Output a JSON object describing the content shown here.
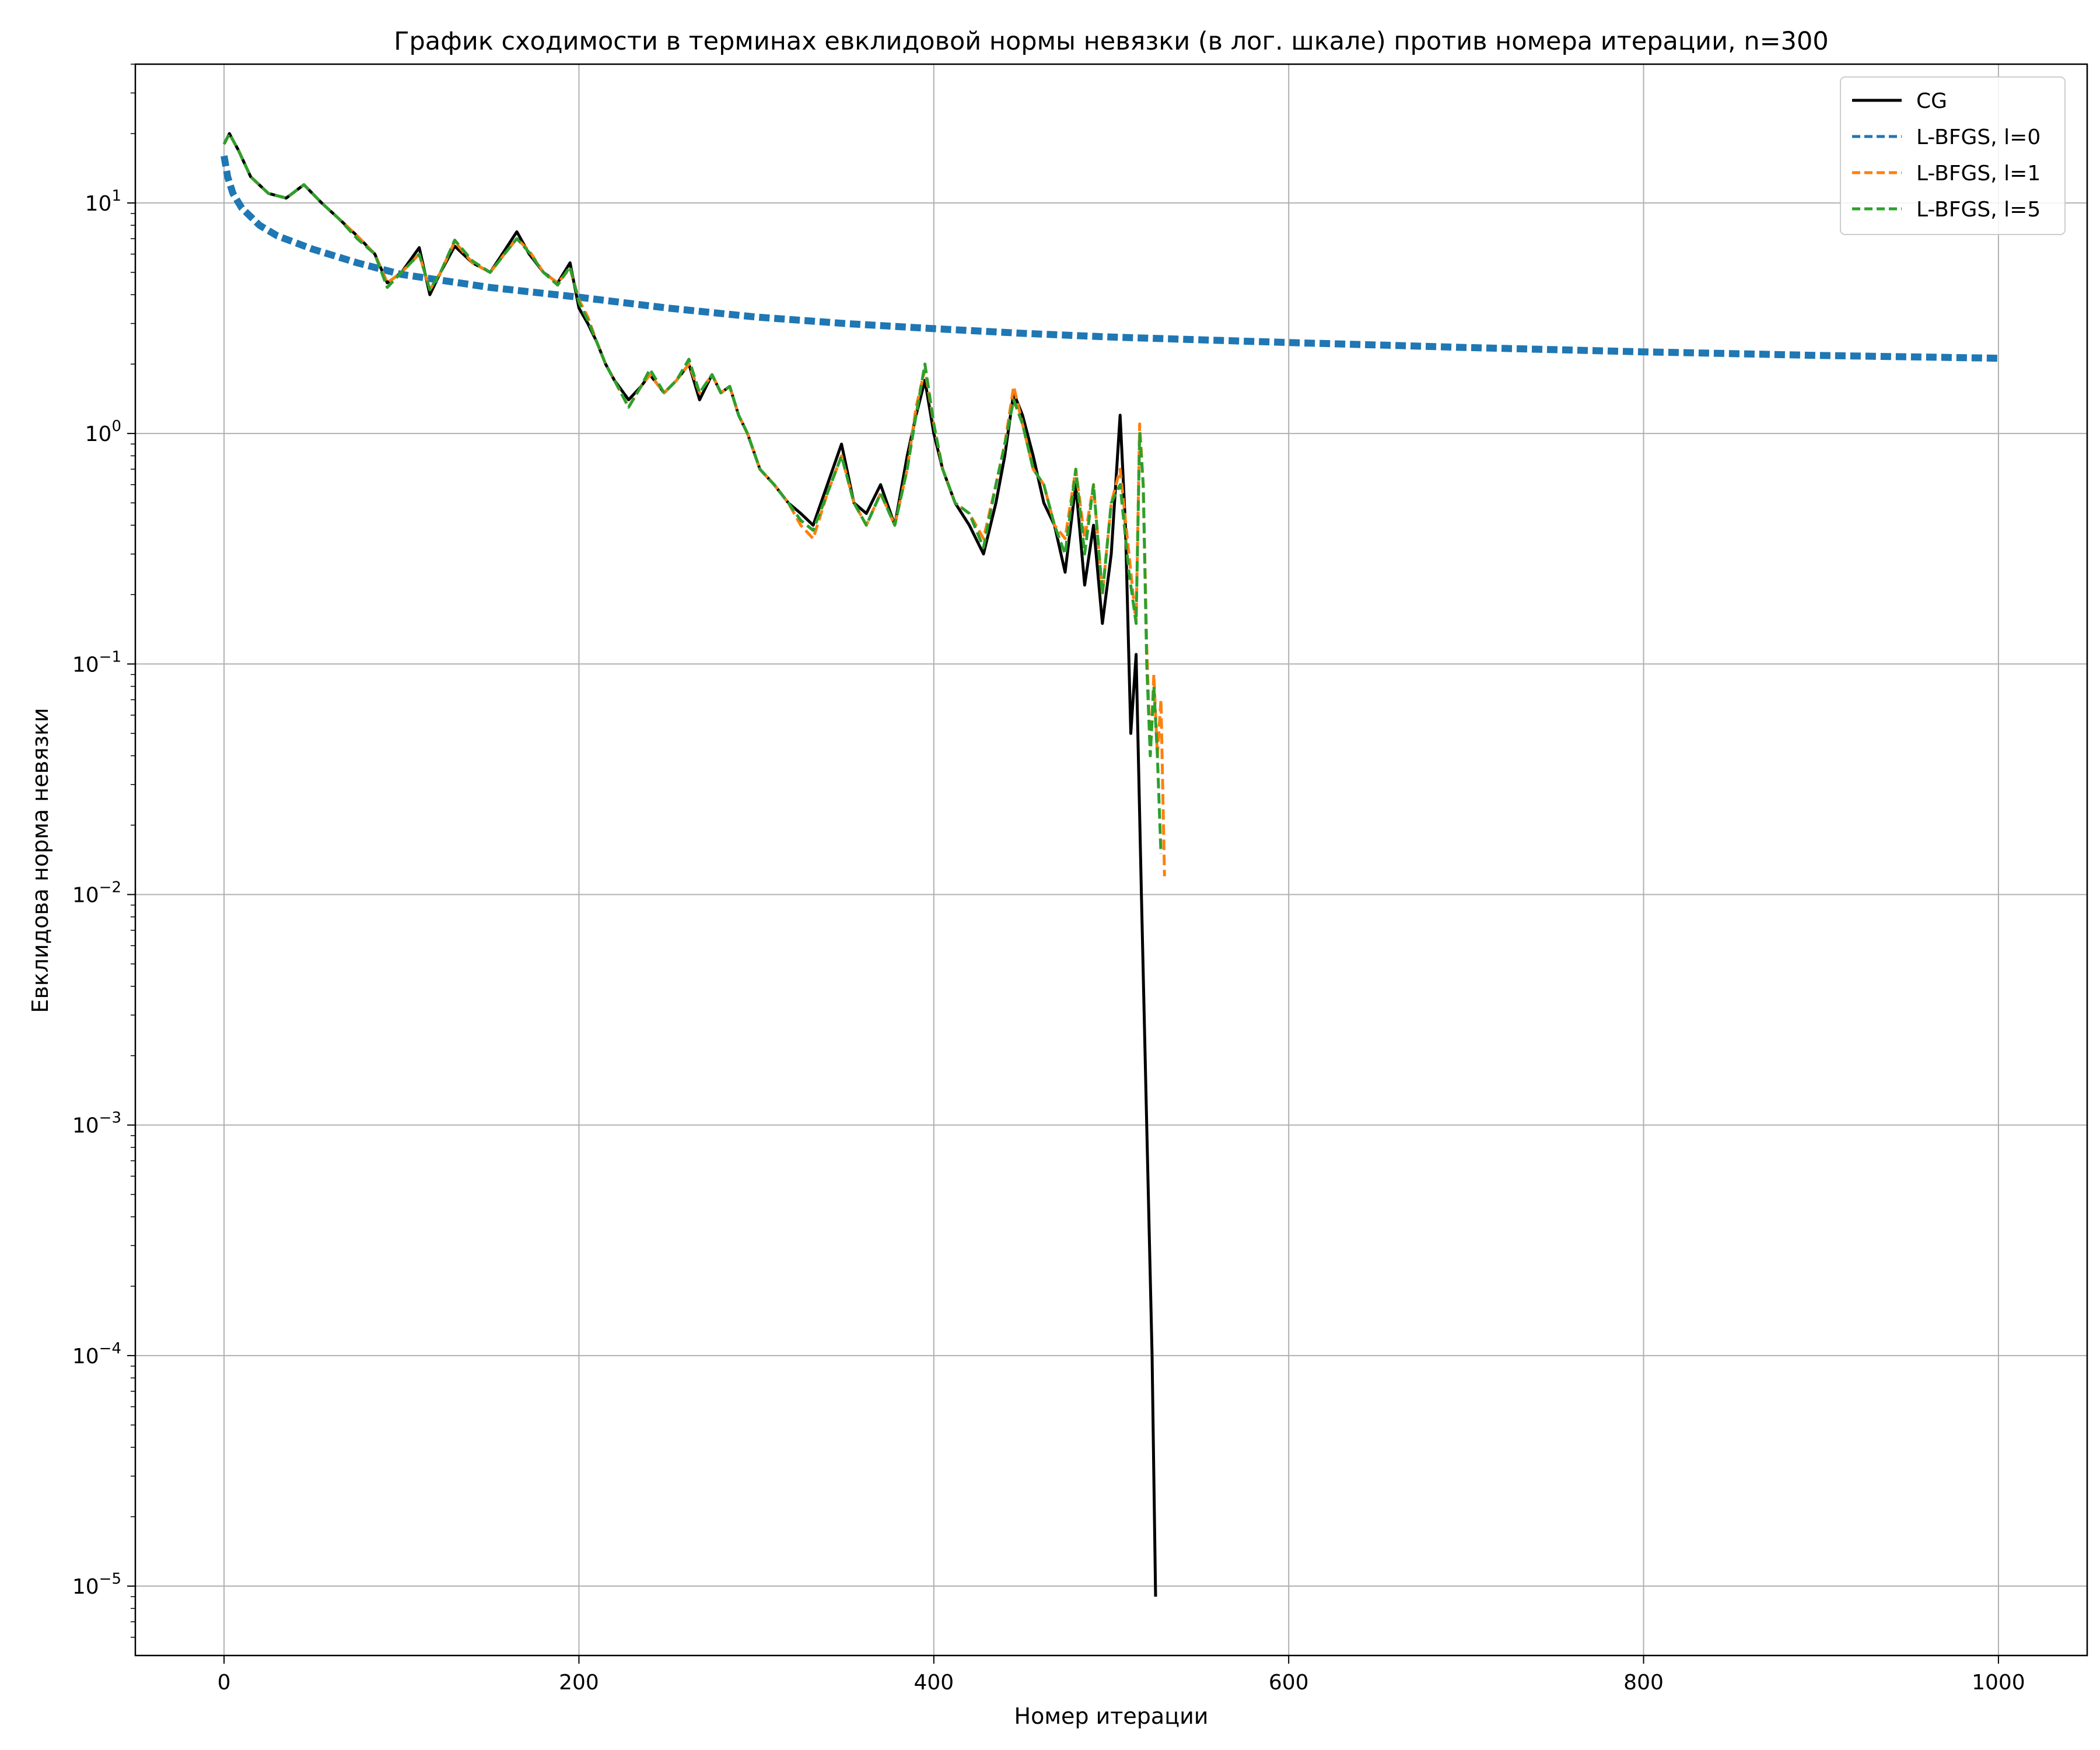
{
  "chart_data": {
    "type": "line",
    "title": "График сходимости в терминах евклидовой нормы невязки (в лог. шкале) против номера итерации, n=300",
    "xlabel": "Номер итерации",
    "ylabel": "Евклидова норма невязки",
    "xlim": [
      -50,
      1050
    ],
    "ylim": [
      5e-06,
      40
    ],
    "yscale": "log",
    "grid": true,
    "legend_position": "top-right",
    "x_ticks": [
      0,
      200,
      400,
      600,
      800,
      1000
    ],
    "x_tick_labels": [
      "0",
      "200",
      "400",
      "600",
      "800",
      "1000"
    ],
    "y_ticks": [
      1e-05,
      0.0001,
      0.001,
      0.01,
      0.1,
      1,
      10
    ],
    "y_tick_labels": [
      {
        "base": "10",
        "exp": "−5"
      },
      {
        "base": "10",
        "exp": "−4"
      },
      {
        "base": "10",
        "exp": "−3"
      },
      {
        "base": "10",
        "exp": "−2"
      },
      {
        "base": "10",
        "exp": "−1"
      },
      {
        "base": "10",
        "exp": "0"
      },
      {
        "base": "10",
        "exp": "1"
      }
    ],
    "series": [
      {
        "name": "CG",
        "color": "#000000",
        "dash": "solid",
        "x": [
          0,
          3,
          8,
          15,
          25,
          35,
          45,
          55,
          65,
          75,
          85,
          92,
          100,
          110,
          116,
          122,
          130,
          140,
          150,
          158,
          165,
          172,
          180,
          188,
          195,
          200,
          205,
          210,
          215,
          220,
          228,
          235,
          240,
          248,
          255,
          262,
          268,
          275,
          280,
          285,
          290,
          295,
          302,
          310,
          318,
          325,
          332,
          340,
          348,
          355,
          362,
          370,
          378,
          385,
          390,
          395,
          400,
          405,
          412,
          420,
          428,
          435,
          440,
          445,
          450,
          456,
          462,
          468,
          474,
          480,
          485,
          490,
          495,
          500,
          505,
          508,
          511,
          514,
          517,
          520,
          523,
          525
        ],
        "y": [
          18,
          20,
          17,
          13,
          11,
          10.5,
          12,
          10,
          8.5,
          7.2,
          6,
          4.5,
          5,
          6.4,
          4,
          5,
          6.5,
          5.5,
          5,
          6.2,
          7.5,
          6,
          5,
          4.5,
          5.5,
          3.5,
          3,
          2.5,
          2,
          1.7,
          1.4,
          1.6,
          1.8,
          1.5,
          1.7,
          2,
          1.4,
          1.8,
          1.5,
          1.6,
          1.2,
          1,
          0.7,
          0.6,
          0.5,
          0.45,
          0.4,
          0.6,
          0.9,
          0.5,
          0.45,
          0.6,
          0.4,
          0.8,
          1.2,
          1.7,
          1,
          0.7,
          0.5,
          0.4,
          0.3,
          0.5,
          0.8,
          1.5,
          1.2,
          0.8,
          0.5,
          0.4,
          0.25,
          0.6,
          0.22,
          0.4,
          0.15,
          0.3,
          1.2,
          0.4,
          0.05,
          0.11,
          0.01,
          0.001,
          0.0001,
          9e-06
        ]
      },
      {
        "name": "L-BFGS, l=0",
        "color": "#1f77b4",
        "dash": "dashed",
        "x": [
          0,
          2,
          5,
          10,
          20,
          30,
          50,
          75,
          100,
          150,
          200,
          250,
          300,
          350,
          400,
          450,
          500,
          550,
          600,
          650,
          700,
          750,
          800,
          850,
          900,
          950,
          1000
        ],
        "y": [
          16,
          13,
          11,
          9.5,
          8,
          7.2,
          6.3,
          5.5,
          4.9,
          4.3,
          3.9,
          3.5,
          3.2,
          3.0,
          2.85,
          2.72,
          2.62,
          2.55,
          2.48,
          2.42,
          2.36,
          2.31,
          2.26,
          2.22,
          2.18,
          2.15,
          2.12
        ]
      },
      {
        "name": "L-BFGS, l=1",
        "color": "#ff7f0e",
        "dash": "dashed",
        "x": [
          0,
          3,
          8,
          15,
          25,
          35,
          45,
          55,
          65,
          75,
          85,
          92,
          100,
          110,
          116,
          122,
          130,
          140,
          150,
          158,
          165,
          172,
          180,
          188,
          195,
          200,
          205,
          210,
          215,
          220,
          228,
          235,
          240,
          248,
          255,
          262,
          268,
          275,
          280,
          285,
          290,
          295,
          302,
          310,
          318,
          325,
          332,
          340,
          348,
          355,
          362,
          370,
          378,
          385,
          390,
          395,
          400,
          405,
          412,
          420,
          428,
          435,
          440,
          445,
          450,
          456,
          462,
          468,
          474,
          480,
          485,
          490,
          495,
          500,
          505,
          510,
          514,
          516,
          518,
          520,
          522,
          524,
          526,
          528,
          530
        ],
        "y": [
          18,
          20,
          17,
          13,
          11,
          10.5,
          12,
          10,
          8.5,
          7.2,
          6,
          4.5,
          5,
          6,
          4.2,
          5,
          6.8,
          5.5,
          5,
          6,
          7,
          6.2,
          5,
          4.5,
          5.2,
          3.8,
          3.2,
          2.5,
          2,
          1.7,
          1.3,
          1.6,
          1.8,
          1.5,
          1.7,
          2,
          1.5,
          1.8,
          1.5,
          1.6,
          1.2,
          1,
          0.7,
          0.6,
          0.5,
          0.4,
          0.35,
          0.55,
          0.8,
          0.5,
          0.4,
          0.55,
          0.4,
          0.7,
          1.3,
          1.9,
          1.1,
          0.7,
          0.5,
          0.45,
          0.35,
          0.6,
          0.9,
          1.6,
          1.1,
          0.7,
          0.6,
          0.4,
          0.35,
          0.7,
          0.35,
          0.6,
          0.2,
          0.5,
          0.7,
          0.3,
          0.15,
          1.1,
          0.6,
          0.12,
          0.04,
          0.09,
          0.04,
          0.07,
          0.012
        ]
      },
      {
        "name": "L-BFGS, l=5",
        "color": "#2ca02c",
        "dash": "dashed",
        "x": [
          0,
          3,
          8,
          15,
          25,
          35,
          45,
          55,
          65,
          75,
          85,
          92,
          100,
          110,
          116,
          122,
          130,
          140,
          150,
          158,
          165,
          172,
          180,
          188,
          195,
          200,
          205,
          210,
          215,
          220,
          228,
          235,
          240,
          248,
          255,
          262,
          268,
          275,
          280,
          285,
          290,
          295,
          302,
          310,
          318,
          325,
          332,
          340,
          348,
          355,
          362,
          370,
          378,
          385,
          390,
          395,
          400,
          405,
          412,
          420,
          428,
          435,
          440,
          445,
          450,
          456,
          462,
          468,
          474,
          480,
          485,
          490,
          495,
          500,
          505,
          510,
          514,
          516,
          518,
          520,
          522,
          524,
          526,
          528
        ],
        "y": [
          18,
          20,
          17,
          13,
          11,
          10.5,
          12,
          10,
          8.5,
          7,
          6,
          4.3,
          5,
          6,
          4.2,
          5,
          6.9,
          5.6,
          5,
          6,
          7,
          6.1,
          5,
          4.4,
          5.3,
          3.7,
          3.1,
          2.5,
          2,
          1.7,
          1.3,
          1.6,
          1.9,
          1.5,
          1.7,
          2.1,
          1.5,
          1.8,
          1.5,
          1.6,
          1.2,
          1,
          0.7,
          0.6,
          0.5,
          0.42,
          0.38,
          0.55,
          0.8,
          0.5,
          0.4,
          0.55,
          0.4,
          0.7,
          1.2,
          2,
          1.1,
          0.7,
          0.5,
          0.45,
          0.32,
          0.6,
          0.9,
          1.4,
          1.1,
          0.7,
          0.6,
          0.4,
          0.3,
          0.7,
          0.3,
          0.6,
          0.2,
          0.5,
          0.6,
          0.25,
          0.15,
          1,
          0.6,
          0.1,
          0.04,
          0.08,
          0.04,
          0.015
        ]
      }
    ]
  }
}
